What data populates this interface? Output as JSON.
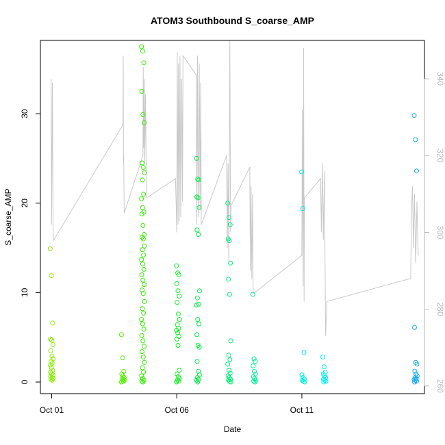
{
  "chart_data": {
    "type": "scatter",
    "title": "ATOM3 Southbound S_coarse_AMP",
    "xlabel": "Date",
    "ylabel": "S_coarse_AMP",
    "x_ticks": [
      "Oct 01",
      "Oct 06",
      "Oct 11"
    ],
    "x_tick_values_days": [
      1,
      6,
      11
    ],
    "xlim_days": [
      0.55,
      15.9
    ],
    "ylim": [
      -1.3,
      38.2
    ],
    "y_ticks": [
      0,
      10,
      20,
      30
    ],
    "right_axis": {
      "ylabel": "",
      "ylim": [
        258,
        350
      ],
      "ticks": [
        260,
        280,
        300,
        320,
        340
      ],
      "color": "#b8b8b8"
    },
    "grid": false,
    "legend": "none",
    "series": [
      {
        "kind": "points",
        "clusters": [
          {
            "day": 1.0,
            "color": "#88ee00",
            "values": [
              14.9,
              11.9,
              6.6,
              4.8,
              4.7,
              4.2,
              3.5,
              2.9,
              2.6,
              2.3,
              2.1,
              1.9,
              1.6,
              1.3,
              1.1,
              0.9,
              0.8,
              0.6,
              0.5,
              0.4,
              0.3,
              0.2
            ]
          },
          {
            "day": 3.85,
            "color": "#55ee00",
            "values": [
              5.3,
              2.7,
              1.2,
              0.9,
              0.7,
              0.5,
              0.4,
              0.3,
              0.2,
              0.1,
              0.1,
              0.0
            ]
          },
          {
            "day": 4.65,
            "color": "#33ee00",
            "values": [
              37.5,
              37.0,
              35.7,
              32.5,
              29.9,
              29.0,
              24.5,
              24.0,
              23.4,
              22.6,
              21.0,
              20.5,
              19.5,
              19.0,
              18.8,
              17.5,
              16.5,
              16.2,
              16.0,
              15.2,
              14.8,
              14.2,
              13.7,
              13.2,
              12.6,
              12.0,
              11.4,
              10.9,
              10.3,
              9.9,
              9.0,
              8.2,
              7.7,
              7.0,
              6.5,
              5.9,
              5.2,
              4.6,
              4.0,
              3.4,
              2.8,
              2.2,
              1.6,
              1.1,
              0.7,
              0.4,
              0.2,
              0.1,
              0.0
            ]
          },
          {
            "day": 6.05,
            "color": "#11ee22",
            "values": [
              13.0,
              12.2,
              12.0,
              11.0,
              10.2,
              9.6,
              8.9,
              7.6,
              7.0,
              6.4,
              6.0,
              5.8,
              5.5,
              5.1,
              4.8,
              4.1,
              1.3,
              0.9,
              0.6,
              0.4,
              0.2,
              0.1,
              0.0
            ]
          },
          {
            "day": 6.85,
            "color": "#00ee44",
            "values": [
              25.0,
              22.7,
              22.6,
              20.7,
              20.6,
              19.5,
              17.0,
              16.5,
              10.2,
              9.4,
              8.7,
              8.6,
              7.0,
              6.5,
              5.3,
              4.1,
              3.9,
              2.3,
              1.2,
              0.8,
              0.5,
              0.3,
              0.2,
              0.0
            ]
          },
          {
            "day": 8.1,
            "color": "#00ee77",
            "values": [
              20.0,
              18.4,
              17.6,
              16.0,
              15.8,
              13.3,
              11.5,
              9.8,
              4.6,
              3.0,
              2.5,
              2.0,
              1.3,
              1.0,
              0.7,
              0.5,
              0.3,
              0.2,
              0.1,
              0.0
            ]
          },
          {
            "day": 9.1,
            "color": "#00ee99",
            "values": [
              9.8,
              2.6,
              2.3,
              1.8,
              1.2,
              0.9,
              0.6,
              0.4,
              0.2,
              0.1,
              0.0
            ]
          },
          {
            "day": 11.05,
            "color": "#00eedd",
            "values": [
              23.5,
              19.4,
              3.3,
              0.8,
              0.5,
              0.3,
              0.2,
              0.1,
              0.0
            ]
          },
          {
            "day": 11.9,
            "color": "#00eeee",
            "values": [
              2.8,
              1.7,
              1.1,
              0.9,
              0.7,
              0.5,
              0.3,
              0.2,
              0.1,
              0.0
            ]
          },
          {
            "day": 15.55,
            "color": "#11aaee",
            "values": [
              29.8,
              27.1,
              23.6,
              6.1,
              2.2,
              2.0,
              1.2,
              0.9,
              0.7,
              0.5,
              0.4,
              0.3,
              0.2,
              0.1,
              0.0
            ]
          }
        ]
      },
      {
        "kind": "line",
        "axis": "right",
        "color": "#c8c8c8",
        "points": [
          [
            0.98,
            340
          ],
          [
            1.0,
            302
          ],
          [
            1.03,
            339
          ],
          [
            1.06,
            300
          ],
          [
            1.08,
            298
          ],
          [
            3.85,
            328
          ],
          [
            3.86,
            346
          ],
          [
            3.87,
            318
          ],
          [
            3.88,
            320
          ],
          [
            3.9,
            305
          ],
          [
            4.65,
            320
          ],
          [
            4.66,
            343
          ],
          [
            4.68,
            322
          ],
          [
            4.7,
            340
          ],
          [
            4.72,
            318
          ],
          [
            4.75,
            336
          ],
          [
            4.78,
            316
          ],
          [
            4.8,
            309
          ],
          [
            5.95,
            314
          ],
          [
            6.0,
            300
          ],
          [
            6.02,
            347
          ],
          [
            6.05,
            302
          ],
          [
            6.07,
            344
          ],
          [
            6.1,
            303
          ],
          [
            6.13,
            346
          ],
          [
            6.16,
            304
          ],
          [
            6.2,
            340
          ],
          [
            6.23,
            308
          ],
          [
            6.25,
            346
          ],
          [
            6.78,
            341
          ],
          [
            6.8,
            302
          ],
          [
            6.83,
            346
          ],
          [
            6.86,
            304
          ],
          [
            6.9,
            344
          ],
          [
            6.93,
            306
          ],
          [
            6.96,
            339
          ],
          [
            6.98,
            302
          ],
          [
            7.99,
            320
          ],
          [
            8.02,
            296
          ],
          [
            8.05,
            318
          ],
          [
            8.08,
            292
          ],
          [
            8.12,
            350
          ],
          [
            8.15,
            300
          ],
          [
            8.17,
            307
          ],
          [
            8.92,
            317
          ],
          [
            8.94,
            290
          ],
          [
            8.97,
            312
          ],
          [
            9.0,
            288
          ],
          [
            9.03,
            310
          ],
          [
            9.05,
            284
          ],
          [
            11.0,
            294
          ],
          [
            11.02,
            332
          ],
          [
            11.05,
            286
          ],
          [
            11.07,
            348
          ],
          [
            11.09,
            282
          ],
          [
            11.1,
            309
          ],
          [
            11.75,
            314
          ],
          [
            11.78,
            300
          ],
          [
            11.82,
            318
          ],
          [
            11.86,
            298
          ],
          [
            11.9,
            316
          ],
          [
            11.95,
            273
          ],
          [
            12.0,
            282
          ],
          [
            15.35,
            288
          ],
          [
            15.38,
            306
          ],
          [
            15.42,
            312
          ],
          [
            15.46,
            296
          ],
          [
            15.5,
            310
          ],
          [
            15.55,
            292
          ],
          [
            15.6,
            308
          ],
          [
            15.65,
            294
          ]
        ]
      }
    ]
  }
}
